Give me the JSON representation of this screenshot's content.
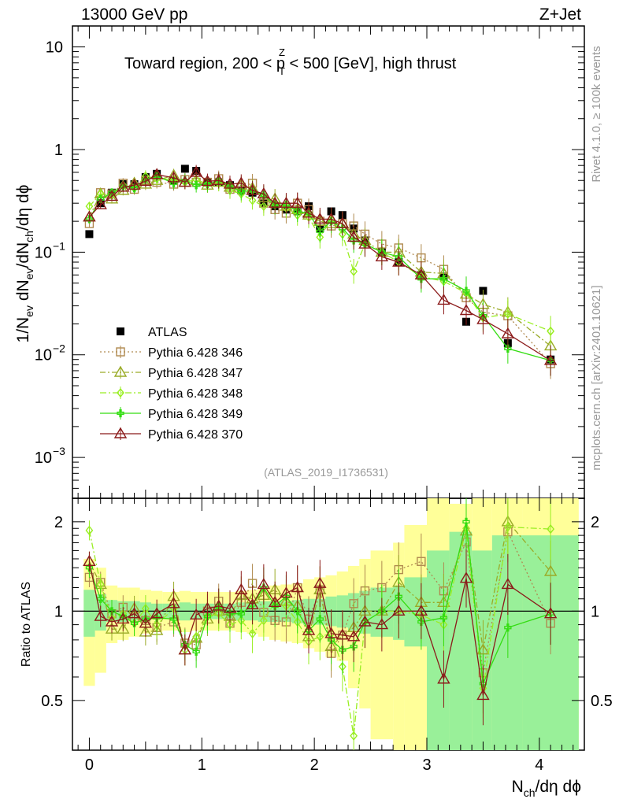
{
  "chart_data": [
    {
      "panel": "main",
      "type": "scatter",
      "header_left": "13000 GeV pp",
      "header_right": "Z+Jet",
      "title": "Toward region, 200 < p_T^Z < 500 [GeV], high thrust",
      "title_parts": {
        "pre": "Toward region, 200 < p",
        "sup": "Z",
        "sub": "T",
        "post": " < 500 [GeV], high thrust"
      },
      "ylabel": "1/N_ev dN_ev/dN_ch/dη dϕ",
      "ylabel_parts": {
        "a": "1/N",
        "a_sub": "ev",
        "b": " dN",
        "b_sub": "ev",
        "c": "/dN",
        "c_sub": "ch",
        "d": "/dη dϕ"
      },
      "yscale": "log",
      "ylim": [
        0.0004,
        16
      ],
      "xlim": [
        -0.15,
        4.4
      ],
      "yticks": [
        {
          "v": 10,
          "label": "10"
        },
        {
          "v": 1,
          "label": "1"
        },
        {
          "v": 0.1,
          "base": "10",
          "exp": "−1"
        },
        {
          "v": 0.01,
          "base": "10",
          "exp": "−2"
        },
        {
          "v": 0.001,
          "base": "10",
          "exp": "−3"
        }
      ],
      "right_label_top": "Rivet 4.1.0, ≥ 100k events",
      "right_label_bottom": "mcplots.cern.ch [arXiv:2401.10621]",
      "watermark": "(ATLAS_2019_I1736531)",
      "legend_position": "middle-left",
      "x": [
        0.0,
        0.1,
        0.2,
        0.3,
        0.4,
        0.5,
        0.6,
        0.75,
        0.85,
        0.95,
        1.05,
        1.15,
        1.25,
        1.35,
        1.45,
        1.55,
        1.65,
        1.75,
        1.85,
        1.95,
        2.05,
        2.15,
        2.25,
        2.35,
        2.45,
        2.6,
        2.75,
        2.95,
        3.15,
        3.35,
        3.5,
        3.72,
        4.1
      ],
      "series": [
        {
          "name": "ATLAS",
          "color": "#000000",
          "marker": "square-filled",
          "values": [
            0.15,
            0.3,
            0.38,
            0.46,
            0.46,
            0.54,
            0.58,
            0.5,
            0.65,
            0.62,
            0.48,
            0.48,
            0.45,
            0.4,
            0.38,
            0.3,
            0.28,
            0.26,
            0.25,
            0.28,
            0.17,
            0.25,
            0.23,
            0.17,
            0.13,
            0.1,
            0.08,
            0.06,
            0.058,
            0.021,
            0.042,
            0.013,
            0.009
          ]
        },
        {
          "name": "Pythia 6.428 346",
          "color": "#b08a50",
          "marker": "square-open",
          "dash": "2,3",
          "values": [
            0.19,
            0.38,
            0.37,
            0.47,
            0.41,
            0.5,
            0.48,
            0.46,
            0.51,
            0.48,
            0.48,
            0.52,
            0.41,
            0.43,
            0.47,
            0.3,
            0.26,
            0.24,
            0.3,
            0.26,
            0.2,
            0.18,
            0.19,
            0.18,
            0.15,
            0.12,
            0.11,
            0.088,
            0.068,
            0.036,
            0.026,
            0.024,
            0.0082
          ]
        },
        {
          "name": "Pythia 6.428 347",
          "color": "#9aab28",
          "marker": "triangle-open",
          "dash": "7,3,2,3",
          "values": [
            0.22,
            0.37,
            0.33,
            0.4,
            0.47,
            0.46,
            0.5,
            0.56,
            0.48,
            0.5,
            0.45,
            0.48,
            0.43,
            0.45,
            0.42,
            0.34,
            0.33,
            0.28,
            0.26,
            0.23,
            0.2,
            0.19,
            0.19,
            0.15,
            0.13,
            0.1,
            0.1,
            0.064,
            0.062,
            0.039,
            0.031,
            0.026,
            0.0122
          ]
        },
        {
          "name": "Pythia 6.428 348",
          "color": "#99ee22",
          "marker": "diamond-open",
          "dash": "8,3,2,3",
          "values": [
            0.28,
            0.37,
            0.36,
            0.45,
            0.42,
            0.55,
            0.52,
            0.51,
            0.48,
            0.51,
            0.46,
            0.47,
            0.4,
            0.37,
            0.32,
            0.28,
            0.3,
            0.27,
            0.23,
            0.22,
            0.14,
            0.21,
            0.15,
            0.065,
            0.12,
            0.1,
            0.08,
            0.058,
            0.052,
            0.04,
            0.023,
            0.025,
            0.017
          ]
        },
        {
          "name": "Pythia 6.428 349",
          "color": "#33dd11",
          "marker": "cross",
          "dash": "",
          "values": [
            0.21,
            0.33,
            0.38,
            0.44,
            0.42,
            0.51,
            0.55,
            0.47,
            0.5,
            0.45,
            0.46,
            0.5,
            0.44,
            0.39,
            0.4,
            0.36,
            0.29,
            0.29,
            0.25,
            0.24,
            0.16,
            0.2,
            0.17,
            0.13,
            0.12,
            0.1,
            0.09,
            0.055,
            0.055,
            0.042,
            0.024,
            0.0115,
            0.0088
          ]
        },
        {
          "name": "Pythia 6.428 370",
          "color": "#8b1a1a",
          "marker": "triangle-open",
          "dash": "",
          "values": [
            0.22,
            0.29,
            0.35,
            0.43,
            0.45,
            0.49,
            0.57,
            0.53,
            0.48,
            0.6,
            0.49,
            0.5,
            0.46,
            0.47,
            0.4,
            0.37,
            0.3,
            0.3,
            0.3,
            0.24,
            0.21,
            0.21,
            0.19,
            0.14,
            0.12,
            0.09,
            0.08,
            0.06,
            0.034,
            0.027,
            0.022,
            0.016,
            0.0088
          ]
        }
      ]
    },
    {
      "panel": "ratio",
      "type": "scatter",
      "ylabel": "Ratio to ATLAS",
      "xlabel": "N_ch/dη dϕ",
      "xlabel_parts": {
        "a": "N",
        "a_sub": "ch",
        "b": "/dη dϕ"
      },
      "ylim": [
        0.34,
        2.4
      ],
      "xlim": [
        -0.15,
        4.4
      ],
      "yticks": [
        {
          "v": 0.5,
          "label": "0.5"
        },
        {
          "v": 1,
          "label": "1"
        },
        {
          "v": 2,
          "label": "2"
        }
      ],
      "xticks": [
        {
          "v": 0,
          "label": "0"
        },
        {
          "v": 1,
          "label": "1"
        },
        {
          "v": 2,
          "label": "2"
        },
        {
          "v": 3,
          "label": "3"
        },
        {
          "v": 4,
          "label": "4"
        }
      ],
      "band_edges": [
        -0.05,
        0.05,
        0.15,
        0.25,
        0.35,
        0.45,
        0.55,
        0.65,
        0.8,
        0.9,
        1.0,
        1.1,
        1.2,
        1.3,
        1.4,
        1.5,
        1.6,
        1.7,
        1.8,
        1.9,
        2.0,
        2.1,
        2.2,
        2.3,
        2.4,
        2.5,
        2.7,
        2.8,
        3.0,
        3.2,
        3.4,
        3.58,
        3.85,
        4.35
      ],
      "band_inner": [
        0.82,
        0.86,
        0.92,
        0.92,
        0.93,
        0.93,
        0.94,
        0.94,
        0.93,
        0.94,
        0.94,
        0.94,
        0.94,
        0.93,
        0.93,
        0.92,
        0.92,
        0.92,
        0.91,
        0.9,
        0.9,
        0.89,
        0.88,
        0.86,
        0.84,
        0.82,
        0.8,
        0.76,
        0.34,
        0.34,
        0.34,
        0.34,
        0.34
      ],
      "band_inner_hi": [
        1.18,
        1.14,
        1.09,
        1.08,
        1.08,
        1.07,
        1.06,
        1.06,
        1.07,
        1.06,
        1.06,
        1.06,
        1.06,
        1.07,
        1.07,
        1.08,
        1.08,
        1.08,
        1.09,
        1.1,
        1.1,
        1.12,
        1.13,
        1.15,
        1.17,
        1.2,
        1.22,
        1.3,
        1.6,
        1.85,
        1.6,
        1.8,
        1.8
      ],
      "band_outer_lo": [
        0.56,
        0.62,
        0.78,
        0.8,
        0.82,
        0.84,
        0.85,
        0.86,
        0.85,
        0.86,
        0.86,
        0.86,
        0.86,
        0.85,
        0.84,
        0.82,
        0.8,
        0.79,
        0.78,
        0.75,
        0.73,
        0.7,
        0.68,
        0.55,
        0.47,
        0.37,
        0.34,
        0.34,
        0.34,
        0.34,
        0.34,
        0.34,
        0.34
      ],
      "band_outer_hi": [
        1.5,
        1.4,
        1.22,
        1.2,
        1.2,
        1.18,
        1.17,
        1.16,
        1.17,
        1.16,
        1.16,
        1.16,
        1.16,
        1.17,
        1.18,
        1.2,
        1.22,
        1.23,
        1.24,
        1.28,
        1.3,
        1.32,
        1.36,
        1.42,
        1.5,
        1.6,
        1.7,
        1.95,
        2.4,
        2.3,
        2.4,
        2.4,
        2.4
      ],
      "series_ratio": [
        [
          1.3,
          1.25,
          0.98,
          1.03,
          0.95,
          0.93,
          0.88,
          0.92,
          0.78,
          0.77,
          1.0,
          1.08,
          0.91,
          1.07,
          1.24,
          0.99,
          0.93,
          0.92,
          1.2,
          0.94,
          1.18,
          0.72,
          0.83,
          1.06,
          1.17,
          1.2,
          1.38,
          1.47,
          1.17,
          1.71,
          0.62,
          1.85,
          0.91
        ],
        [
          1.47,
          1.23,
          0.87,
          0.87,
          1.02,
          0.85,
          0.86,
          1.12,
          0.74,
          0.81,
          0.94,
          1.0,
          0.96,
          1.13,
          1.1,
          1.13,
          1.18,
          1.08,
          1.04,
          0.82,
          1.18,
          0.76,
          0.83,
          0.88,
          1.0,
          1.0,
          1.25,
          1.07,
          1.07,
          1.86,
          0.74,
          2.0,
          1.36
        ],
        [
          1.87,
          1.23,
          0.95,
          0.98,
          0.91,
          1.02,
          0.9,
          1.02,
          0.74,
          0.82,
          0.96,
          0.98,
          0.9,
          0.93,
          0.84,
          0.93,
          1.07,
          1.04,
          0.92,
          0.79,
          0.82,
          0.84,
          0.65,
          0.38,
          0.92,
          1.0,
          1.0,
          0.97,
          0.9,
          1.9,
          0.55,
          1.92,
          1.89
        ],
        [
          1.4,
          1.1,
          1.0,
          0.96,
          0.91,
          0.94,
          0.95,
          0.94,
          0.77,
          0.73,
          0.96,
          1.04,
          0.98,
          0.98,
          1.05,
          1.2,
          1.04,
          1.12,
          1.0,
          0.86,
          0.94,
          0.8,
          0.74,
          0.76,
          0.92,
          1.0,
          1.12,
          0.92,
          0.95,
          2.0,
          0.57,
          0.88,
          0.98
        ],
        [
          1.47,
          0.96,
          0.92,
          0.94,
          0.98,
          0.91,
          0.98,
          1.06,
          0.74,
          0.97,
          1.02,
          1.04,
          1.02,
          1.18,
          1.05,
          1.23,
          1.07,
          1.15,
          1.2,
          0.86,
          1.24,
          0.84,
          0.83,
          0.82,
          0.92,
          0.9,
          1.0,
          1.0,
          0.59,
          1.29,
          0.52,
          1.23,
          0.98
        ]
      ]
    }
  ]
}
